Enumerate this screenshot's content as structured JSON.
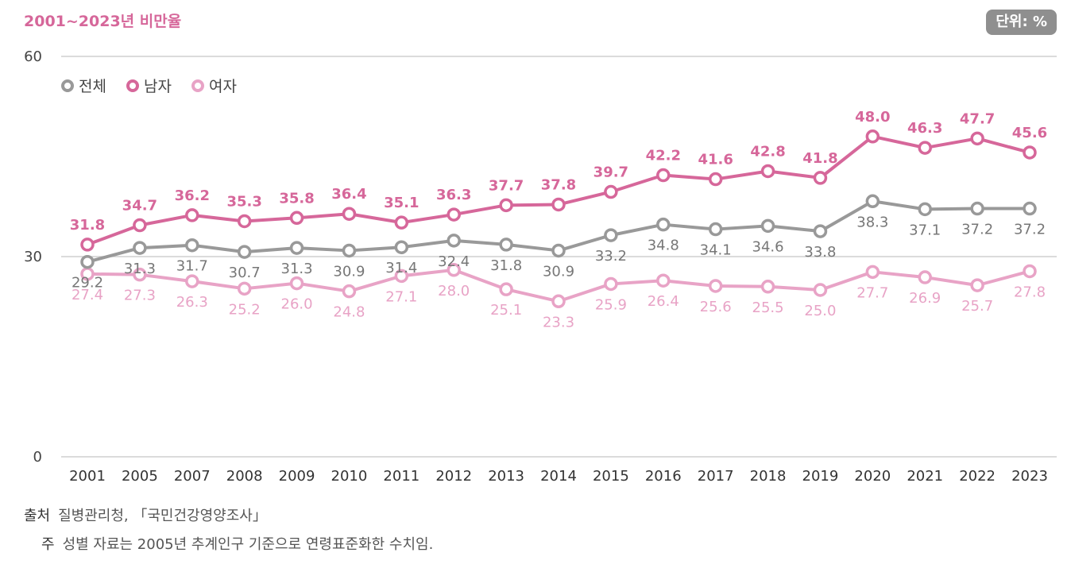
{
  "header": {
    "title": "2001~2023년 비만율",
    "unit": "단위: %"
  },
  "chart_data": {
    "type": "line",
    "categories": [
      "2001",
      "2005",
      "2007",
      "2008",
      "2009",
      "2010",
      "2011",
      "2012",
      "2013",
      "2014",
      "2015",
      "2016",
      "2017",
      "2018",
      "2019",
      "2020",
      "2021",
      "2022",
      "2023"
    ],
    "ylim": [
      0,
      60
    ],
    "yticks": [
      "0",
      "30",
      "60"
    ],
    "grid": true,
    "legend": "top-left",
    "series": [
      {
        "name": "전체",
        "color": "#999999",
        "values": [
          29.2,
          31.3,
          31.7,
          30.7,
          31.3,
          30.9,
          31.4,
          32.4,
          31.8,
          30.9,
          33.2,
          34.8,
          34.1,
          34.6,
          33.8,
          38.3,
          37.1,
          37.2,
          37.2
        ]
      },
      {
        "name": "남자",
        "color": "#d6679a",
        "values": [
          31.8,
          34.7,
          36.2,
          35.3,
          35.8,
          36.4,
          35.1,
          36.3,
          37.7,
          37.8,
          39.7,
          42.2,
          41.6,
          42.8,
          41.8,
          48.0,
          46.3,
          47.7,
          45.6
        ]
      },
      {
        "name": "여자",
        "color": "#e8a3c6",
        "values": [
          27.4,
          27.3,
          26.3,
          25.2,
          26.0,
          24.8,
          27.1,
          28.0,
          25.1,
          23.3,
          25.9,
          26.4,
          25.6,
          25.5,
          25.0,
          27.7,
          26.9,
          25.7,
          27.8
        ]
      }
    ]
  },
  "footer": {
    "source_label": "출처",
    "source_text": "질병관리청, 「국민건강영양조사」",
    "note_label": "주",
    "note_text": "성별 자료는 2005년 추계인구 기준으로 연령표준화한 수치임."
  }
}
